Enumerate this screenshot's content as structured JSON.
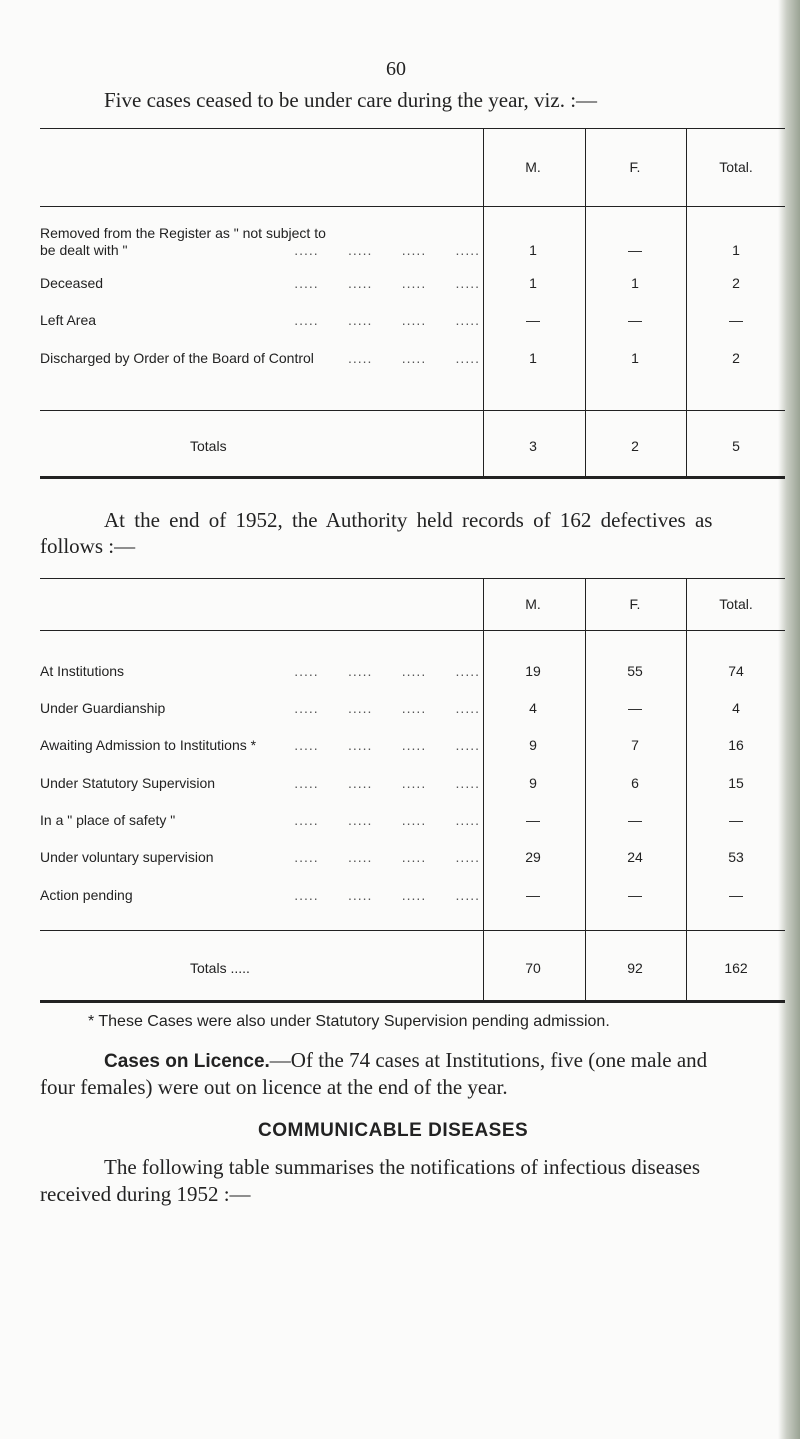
{
  "page_number": "60",
  "intro": "Five cases ceased to be under care during the year, viz. :—",
  "table1": {
    "headers": [
      "M.",
      "F.",
      "Total."
    ],
    "rows": [
      {
        "label": "Removed from the Register as \" not subject to",
        "label2": "be dealt with \"",
        "m": "1",
        "f": "—",
        "total": "1"
      },
      {
        "label": "Deceased",
        "m": "1",
        "f": "1",
        "total": "2"
      },
      {
        "label": "Left Area",
        "m": "—",
        "f": "—",
        "total": "—"
      },
      {
        "label": "Discharged by Order of the Board of Control",
        "m": "1",
        "f": "1",
        "total": "2"
      }
    ],
    "totals": {
      "label": "Totals",
      "m": "3",
      "f": "2",
      "total": "5"
    }
  },
  "para2": "At the end of 1952, the Authority held records of 162 defectives as",
  "para2b": "follows :—",
  "table2": {
    "headers": [
      "M.",
      "F.",
      "Total."
    ],
    "rows": [
      {
        "label": "At Institutions",
        "m": "19",
        "f": "55",
        "total": "74"
      },
      {
        "label": "Under Guardianship",
        "m": "4",
        "f": "—",
        "total": "4"
      },
      {
        "label": "Awaiting Admission to Institutions *",
        "m": "9",
        "f": "7",
        "total": "16"
      },
      {
        "label": "Under Statutory Supervision",
        "m": "9",
        "f": "6",
        "total": "15"
      },
      {
        "label": "In a \" place of safety \"",
        "m": "—",
        "f": "—",
        "total": "—"
      },
      {
        "label": "Under voluntary supervision",
        "m": "29",
        "f": "24",
        "total": "53"
      },
      {
        "label": "Action pending",
        "m": "—",
        "f": "—",
        "total": "—"
      }
    ],
    "totals": {
      "label": "Totals .....",
      "m": "70",
      "f": "92",
      "total": "162"
    }
  },
  "footnote": "* These Cases were also under Statutory Supervision pending admission.",
  "licence_heading": "Cases on Licence.",
  "licence_text": "—Of the 74 cases at Institutions, five (one male and",
  "licence_text2": "four females) were out on licence at the end of the year.",
  "section_heading": "COMMUNICABLE DISEASES",
  "para3": "The following table summarises the notifications of infectious diseases",
  "para3b": "received during 1952 :—"
}
